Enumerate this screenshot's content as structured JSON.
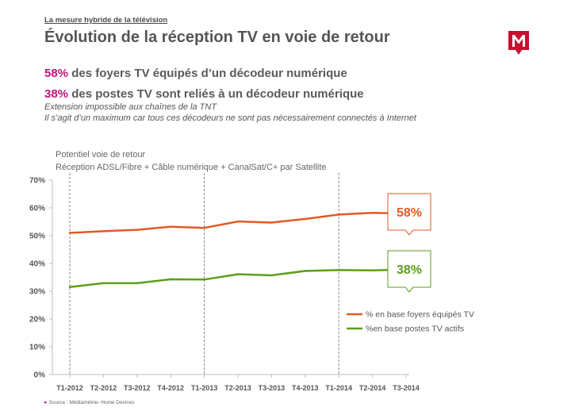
{
  "header": {
    "kicker": "La mesure hybride de la télévision",
    "title": "Évolution de la réception TV en voie de retour"
  },
  "stats": [
    {
      "pct": "58%",
      "text": " des foyers TV équipés d’un décodeur numérique"
    },
    {
      "pct": "38%",
      "text": " des postes TV sont reliés à un décodeur numérique"
    }
  ],
  "notes": [
    "Extension impossible  aux chaînes de la TNT",
    "Il s’agit d’un maximum car tous ces décodeurs ne sont pas nécessairement connectés à Internet"
  ],
  "subtitle": [
    "Potentiel voie de retour",
    "Réception ADSL/Fibre + Câble numérique + CanalSat/C+ par Satellite"
  ],
  "source": "Source : Médiamétrie- Home Devices",
  "colors": {
    "accent": "#c0147a",
    "series_orange": "#e35a23",
    "series_green": "#5e9e1a",
    "logo": "#c8102e"
  },
  "chart_data": {
    "type": "line",
    "categories": [
      "T1-2012",
      "T2-2012",
      "T3-2012",
      "T4-2012",
      "T1-2013",
      "T2-2013",
      "T3-2013",
      "T4-2013",
      "T1-2014",
      "T2-2014",
      "T3-2014"
    ],
    "x": [
      0,
      1,
      2,
      3,
      4,
      5,
      6,
      7,
      8,
      9,
      10
    ],
    "series": [
      {
        "name": "% en base foyers équipés TV",
        "color": "#e35a23",
        "points": [
          [
            0,
            51
          ],
          [
            1,
            51.6
          ],
          [
            2,
            52.1
          ],
          [
            3,
            53.2
          ],
          [
            4,
            52.8
          ],
          [
            5,
            55.1
          ],
          [
            6,
            54.7
          ],
          [
            7,
            56.0
          ],
          [
            8,
            57.6
          ],
          [
            9,
            58.2
          ],
          [
            10,
            58.0
          ]
        ],
        "callout": "58%"
      },
      {
        "name": "%en base postes TV actifs",
        "color": "#5e9e1a",
        "points": [
          [
            0,
            31.5
          ],
          [
            1,
            32.9
          ],
          [
            2,
            32.9
          ],
          [
            3,
            34.3
          ],
          [
            4,
            34.2
          ],
          [
            5,
            36.1
          ],
          [
            6,
            35.7
          ],
          [
            7,
            37.3
          ],
          [
            8,
            37.6
          ],
          [
            9,
            37.5
          ],
          [
            10,
            37.8
          ]
        ],
        "callout": "38%"
      }
    ],
    "yticks": [
      "0%",
      "10%",
      "20%",
      "30%",
      "40%",
      "50%",
      "60%",
      "70%"
    ],
    "ylim": [
      0,
      70
    ],
    "dashed_dividers_at": [
      0,
      4,
      8
    ],
    "grid": false,
    "legend_position": "bottom-right"
  }
}
